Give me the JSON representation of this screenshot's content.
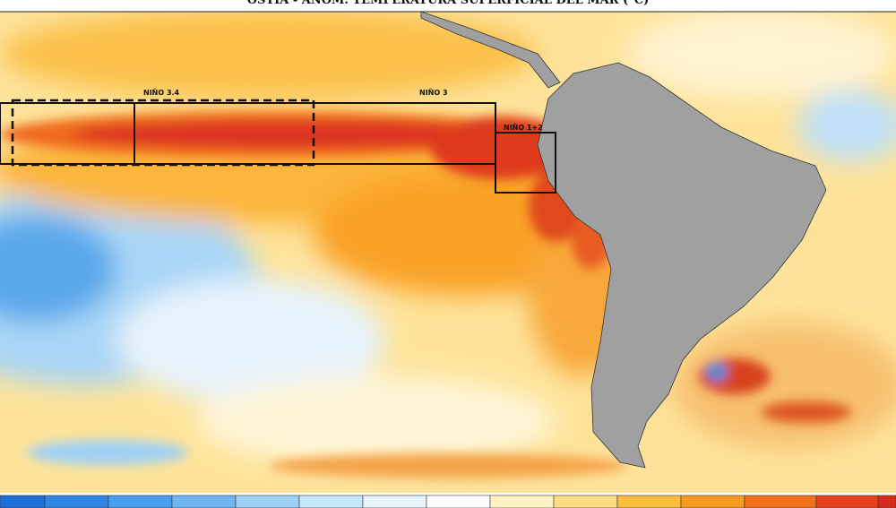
{
  "header": {
    "title": "OSTIA - ANOM. TEMPERATURA SUPERFICIAL DEL MAR (°C)"
  },
  "regions": [
    {
      "label": "NIÑO 3.4"
    },
    {
      "label": "NIÑO 3"
    },
    {
      "label": "NIÑO 1+2"
    }
  ]
}
